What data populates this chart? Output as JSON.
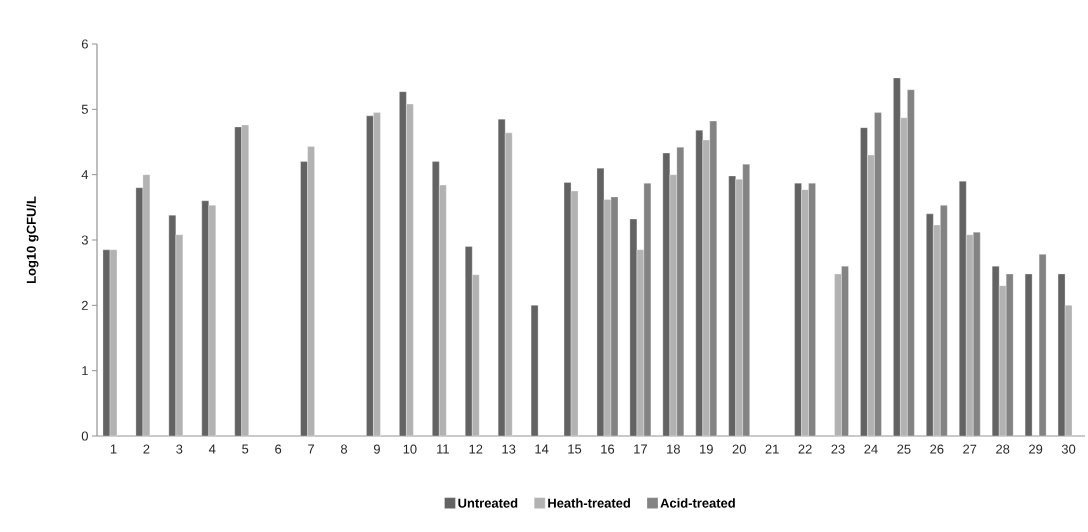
{
  "chart_data": {
    "type": "bar",
    "ylabel": "Log10 gCFU/L",
    "categories": [
      "1",
      "2",
      "3",
      "4",
      "5",
      "6",
      "7",
      "8",
      "9",
      "10",
      "11",
      "12",
      "13",
      "14",
      "15",
      "16",
      "17",
      "18",
      "19",
      "20",
      "21",
      "22",
      "23",
      "24",
      "25",
      "26",
      "27",
      "28",
      "29",
      "30"
    ],
    "series": [
      {
        "name": "Untreated",
        "color": "#636363",
        "values": [
          2.85,
          3.8,
          3.38,
          3.6,
          4.73,
          null,
          4.2,
          null,
          4.9,
          5.27,
          4.2,
          2.9,
          4.85,
          2.0,
          3.88,
          4.1,
          3.32,
          4.33,
          4.68,
          3.98,
          null,
          3.87,
          null,
          4.72,
          5.48,
          3.4,
          3.9,
          2.6,
          2.48,
          2.48
        ]
      },
      {
        "name": "Heath-treated",
        "color": "#b2b2b2",
        "values": [
          2.85,
          4.0,
          3.08,
          3.53,
          4.76,
          null,
          4.43,
          null,
          4.95,
          5.08,
          3.84,
          2.47,
          4.64,
          null,
          3.75,
          3.62,
          2.85,
          4.0,
          4.53,
          3.93,
          null,
          3.77,
          2.48,
          4.3,
          4.87,
          3.23,
          3.08,
          2.3,
          null,
          2.0
        ]
      },
      {
        "name": "Acid-treated",
        "color": "#838383",
        "values": [
          null,
          null,
          null,
          null,
          null,
          null,
          null,
          null,
          null,
          null,
          null,
          null,
          null,
          null,
          null,
          3.66,
          3.87,
          4.42,
          4.82,
          4.16,
          null,
          3.87,
          2.6,
          4.95,
          5.3,
          3.53,
          3.12,
          2.48,
          2.78,
          null
        ]
      }
    ],
    "ylim": [
      0,
      6
    ],
    "yticks": [
      0,
      1,
      2,
      3,
      4,
      5,
      6
    ],
    "grid": false,
    "legend": "bottom"
  }
}
